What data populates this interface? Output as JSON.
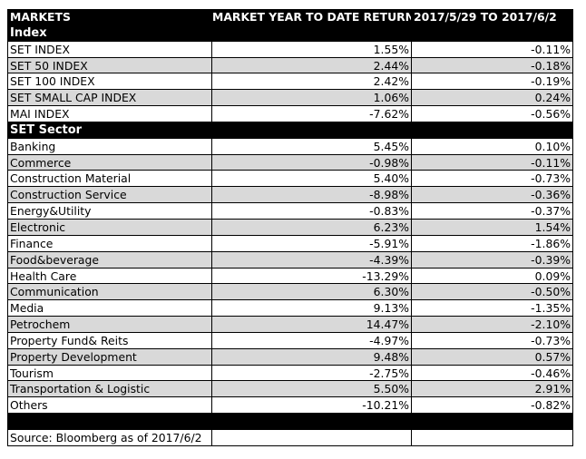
{
  "header": {
    "col1": "MARKETS",
    "col2": "MARKET YEAR TO DATE RETURN",
    "col3": "2017/5/29 TO 2017/6/2"
  },
  "index_section": {
    "title": "Index",
    "rows": [
      {
        "name": "SET INDEX",
        "ytd": "1.55%",
        "week": "-0.11%"
      },
      {
        "name": "SET 50 INDEX",
        "ytd": "2.44%",
        "week": "-0.18%"
      },
      {
        "name": "SET 100 INDEX",
        "ytd": "2.42%",
        "week": "-0.19%"
      },
      {
        "name": "SET SMALL CAP INDEX",
        "ytd": "1.06%",
        "week": "0.24%"
      },
      {
        "name": "MAI INDEX",
        "ytd": "-7.62%",
        "week": "-0.56%"
      }
    ]
  },
  "sector_section": {
    "title": "SET Sector",
    "rows": [
      {
        "name": "Banking",
        "ytd": "5.45%",
        "week": "0.10%"
      },
      {
        "name": "Commerce",
        "ytd": "-0.98%",
        "week": "-0.11%"
      },
      {
        "name": "Construction Material",
        "ytd": "5.40%",
        "week": "-0.73%"
      },
      {
        "name": "Construction Service",
        "ytd": "-8.98%",
        "week": "-0.36%"
      },
      {
        "name": "Energy&Utility",
        "ytd": "-0.83%",
        "week": "-0.37%"
      },
      {
        "name": "Electronic",
        "ytd": "6.23%",
        "week": "1.54%"
      },
      {
        "name": "Finance",
        "ytd": "-5.91%",
        "week": "-1.86%"
      },
      {
        "name": "Food&beverage",
        "ytd": "-4.39%",
        "week": "-0.39%"
      },
      {
        "name": "Health Care",
        "ytd": "-13.29%",
        "week": "0.09%"
      },
      {
        "name": "Communication",
        "ytd": "6.30%",
        "week": "-0.50%"
      },
      {
        "name": "Media",
        "ytd": "9.13%",
        "week": "-1.35%"
      },
      {
        "name": "Petrochem",
        "ytd": "14.47%",
        "week": "-2.10%"
      },
      {
        "name": "Property Fund& Reits",
        "ytd": "-4.97%",
        "week": "-0.73%"
      },
      {
        "name": "Property Development",
        "ytd": "9.48%",
        "week": "0.57%"
      },
      {
        "name": "Tourism",
        "ytd": "-2.75%",
        "week": "-0.46%"
      },
      {
        "name": "Transportation & Logistic",
        "ytd": "5.50%",
        "week": "2.91%"
      },
      {
        "name": "Others",
        "ytd": "-10.21%",
        "week": "-0.82%"
      }
    ]
  },
  "footer": {
    "source": "Source: Bloomberg as of 2017/6/2"
  },
  "colors": {
    "header_bg": "#000000",
    "header_text": "#ffffff",
    "alt_row_bg": "#d9d9d9"
  }
}
